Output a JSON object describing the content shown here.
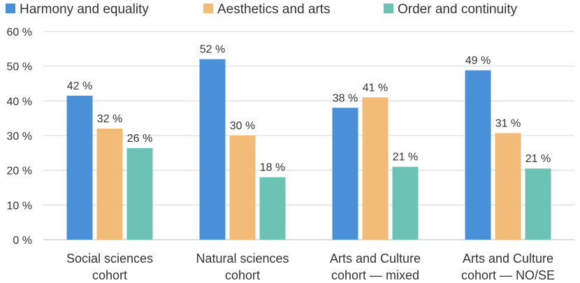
{
  "chart_data": {
    "type": "bar",
    "categories": [
      [
        "Social sciences",
        "cohort"
      ],
      [
        "Natural sciences",
        "cohort"
      ],
      [
        "Arts and Culture",
        "cohort — mixed"
      ],
      [
        "Arts and Culture",
        "cohort — NO/SE"
      ]
    ],
    "series": [
      {
        "name": "Harmony and equality",
        "color": "#4a90d9",
        "values": [
          41.5,
          52,
          38,
          48.8
        ],
        "labels": [
          "42 %",
          "52 %",
          "38 %",
          "49 %"
        ]
      },
      {
        "name": "Aesthetics and arts",
        "color": "#f2bb78",
        "values": [
          32,
          30,
          41,
          30.7
        ],
        "labels": [
          "32 %",
          "30 %",
          "41 %",
          "31 %"
        ]
      },
      {
        "name": "Order and continuity",
        "color": "#6cc2b4",
        "values": [
          26.4,
          18,
          21,
          20.5
        ],
        "labels": [
          "26 %",
          "18 %",
          "21 %",
          "21 %"
        ]
      }
    ],
    "ylim": [
      0,
      60
    ],
    "yticks": [
      0,
      10,
      20,
      30,
      40,
      50,
      60
    ],
    "ytick_labels": [
      "0 %",
      "10 %",
      "20 %",
      "30 %",
      "40 %",
      "50 %",
      "60 %"
    ],
    "legend_position": "top",
    "grid": true
  }
}
